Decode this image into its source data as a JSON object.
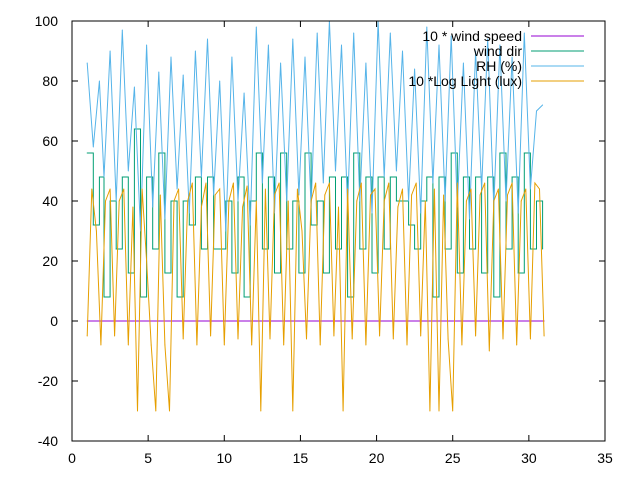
{
  "chart_data": {
    "type": "line",
    "title": "",
    "xlabel": "",
    "ylabel": "",
    "xlim": [
      0,
      35
    ],
    "ylim": [
      -40,
      100
    ],
    "xticks": [
      0,
      5,
      10,
      15,
      20,
      25,
      30,
      35
    ],
    "yticks": [
      -40,
      -20,
      0,
      20,
      40,
      60,
      80,
      100
    ],
    "grid": false,
    "legend_position": "top-right",
    "series": [
      {
        "name": "10 * wind speed",
        "color": "#9400d3",
        "x": [
          1.0,
          31.0
        ],
        "y": [
          0,
          0
        ]
      },
      {
        "name": "wind dir",
        "color": "#009e73",
        "x": [
          1.0,
          1.4,
          1.8,
          2.1,
          2.5,
          2.9,
          3.3,
          3.7,
          4.1,
          4.5,
          4.9,
          5.3,
          5.7,
          6.1,
          6.5,
          6.9,
          7.3,
          7.7,
          8.1,
          8.5,
          8.9,
          9.3,
          9.7,
          10.1,
          10.5,
          10.9,
          11.3,
          11.7,
          12.1,
          12.5,
          12.9,
          13.3,
          13.7,
          14.1,
          14.5,
          14.9,
          15.3,
          15.7,
          16.1,
          16.5,
          16.9,
          17.3,
          17.7,
          18.1,
          18.5,
          18.9,
          19.3,
          19.7,
          20.1,
          20.5,
          20.9,
          21.3,
          21.7,
          22.1,
          22.5,
          22.9,
          23.3,
          23.7,
          24.1,
          24.5,
          24.9,
          25.3,
          25.7,
          26.1,
          26.5,
          26.9,
          27.3,
          27.7,
          28.1,
          28.5,
          28.9,
          29.3,
          29.7,
          30.1,
          30.5,
          30.9
        ],
        "y": [
          56,
          32,
          48,
          8,
          40,
          24,
          48,
          16,
          64,
          8,
          48,
          24,
          56,
          16,
          40,
          8,
          40,
          32,
          48,
          24,
          48,
          24,
          24,
          40,
          16,
          48,
          8,
          40,
          56,
          24,
          48,
          16,
          56,
          24,
          40,
          16,
          56,
          32,
          40,
          16,
          48,
          24,
          48,
          8,
          56,
          24,
          48,
          16,
          48,
          24,
          48,
          40,
          40,
          32,
          24,
          40,
          48,
          8,
          48,
          24,
          56,
          16,
          48,
          24,
          48,
          16,
          48,
          8,
          56,
          24,
          48,
          16,
          56,
          24,
          40,
          24
        ]
      },
      {
        "name": "RH (%)",
        "color": "#56b4e9",
        "x": [
          1.0,
          1.4,
          1.8,
          2.1,
          2.5,
          2.9,
          3.3,
          3.7,
          4.1,
          4.5,
          4.9,
          5.3,
          5.7,
          6.1,
          6.5,
          6.9,
          7.3,
          7.7,
          8.1,
          8.5,
          8.9,
          9.3,
          9.7,
          10.1,
          10.5,
          10.9,
          11.3,
          11.7,
          12.1,
          12.5,
          12.9,
          13.3,
          13.7,
          14.1,
          14.5,
          14.9,
          15.3,
          15.7,
          16.1,
          16.5,
          16.9,
          17.3,
          17.7,
          18.1,
          18.5,
          18.9,
          19.3,
          19.7,
          20.1,
          20.5,
          20.9,
          21.3,
          21.7,
          22.1,
          22.5,
          22.9,
          23.3,
          23.7,
          24.1,
          24.5,
          24.9,
          25.3,
          25.7,
          26.1,
          26.5,
          26.9,
          27.3,
          27.7,
          28.1,
          28.5,
          28.9,
          29.3,
          29.7,
          30.1,
          30.5,
          30.9
        ],
        "y": [
          86,
          58,
          80,
          48,
          90,
          40,
          97,
          50,
          78,
          30,
          92,
          38,
          83,
          34,
          88,
          44,
          82,
          36,
          90,
          48,
          94,
          42,
          80,
          30,
          88,
          40,
          76,
          32,
          98,
          46,
          92,
          36,
          86,
          40,
          94,
          42,
          88,
          38,
          96,
          46,
          100,
          50,
          92,
          38,
          96,
          40,
          86,
          36,
          100,
          48,
          96,
          50,
          90,
          40,
          84,
          36,
          98,
          46,
          92,
          40,
          95,
          38,
          86,
          34,
          90,
          44,
          94,
          38,
          92,
          40,
          88,
          36,
          96,
          44,
          70,
          72
        ]
      },
      {
        "name": "10 *Log Light (lux)",
        "color": "#e69f00",
        "x": [
          1.0,
          1.3,
          1.6,
          1.9,
          2.2,
          2.5,
          2.8,
          3.1,
          3.4,
          3.7,
          4.0,
          4.3,
          4.6,
          4.9,
          5.2,
          5.5,
          5.8,
          6.1,
          6.4,
          6.7,
          7.0,
          7.3,
          7.6,
          7.9,
          8.2,
          8.5,
          8.8,
          9.1,
          9.4,
          9.7,
          10.0,
          10.3,
          10.6,
          10.9,
          11.2,
          11.5,
          11.8,
          12.1,
          12.4,
          12.7,
          13.0,
          13.3,
          13.6,
          13.9,
          14.2,
          14.5,
          14.8,
          15.1,
          15.4,
          15.7,
          16.0,
          16.3,
          16.6,
          16.9,
          17.2,
          17.5,
          17.8,
          18.1,
          18.4,
          18.7,
          19.0,
          19.3,
          19.6,
          19.9,
          20.2,
          20.5,
          20.8,
          21.1,
          21.4,
          21.7,
          22.0,
          22.3,
          22.6,
          22.9,
          23.2,
          23.5,
          23.8,
          24.1,
          24.4,
          24.7,
          25.0,
          25.3,
          25.6,
          25.9,
          26.2,
          26.5,
          26.8,
          27.1,
          27.4,
          27.7,
          28.0,
          28.3,
          28.6,
          28.9,
          29.2,
          29.5,
          29.8,
          30.1,
          30.4,
          30.7,
          31.0
        ],
        "y": [
          -5,
          44,
          30,
          -8,
          40,
          44,
          -5,
          40,
          44,
          -8,
          38,
          -30,
          44,
          20,
          -8,
          -30,
          42,
          -8,
          -30,
          40,
          44,
          -6,
          40,
          46,
          -8,
          38,
          46,
          -5,
          42,
          44,
          -8,
          40,
          46,
          -6,
          38,
          45,
          -8,
          40,
          -30,
          44,
          -6,
          42,
          46,
          -8,
          40,
          -30,
          44,
          30,
          -6,
          40,
          46,
          -8,
          42,
          46,
          -5,
          38,
          -30,
          44,
          -6,
          40,
          46,
          -8,
          42,
          44,
          -5,
          40,
          46,
          -6,
          38,
          44,
          -8,
          42,
          46,
          -5,
          40,
          -30,
          44,
          -30,
          42,
          -6,
          -30,
          46,
          -8,
          40,
          44,
          -5,
          42,
          46,
          -10,
          40,
          44,
          -6,
          42,
          46,
          -8,
          40,
          44,
          -6,
          46,
          44,
          -5
        ]
      }
    ]
  }
}
